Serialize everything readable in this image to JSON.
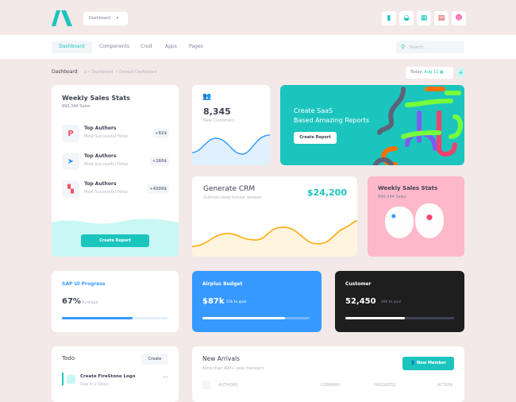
{
  "header": {
    "dropdown": "Dashboard",
    "icons": [
      "chart-icon",
      "basket-icon",
      "apps-icon",
      "us-flag-icon",
      "user-avatar"
    ]
  },
  "nav": {
    "items": [
      "Dashboard",
      "Components",
      "Crud",
      "Apps",
      "Pages"
    ],
    "active": 0,
    "search_placeholder": "Search..."
  },
  "breadcrumb": {
    "title": "Dashboard",
    "items": [
      "Dashboard",
      "Default Dashboard"
    ],
    "date_label": "Today:",
    "date_value": "Aug 11"
  },
  "weekly": {
    "title": "Weekly Sales Stats",
    "subtitle": "890,344 Sales",
    "rows": [
      {
        "title": "Top Authors",
        "sub": "Most Successful Fellas",
        "value": "+82$"
      },
      {
        "title": "Top Authors",
        "sub": "Most Successful Fellas",
        "value": "+280$"
      },
      {
        "title": "Top Authors",
        "sub": "Most Successful Fellas",
        "value": "+4500$"
      }
    ],
    "button": "Create Report"
  },
  "customers": {
    "value": "8,345",
    "label": "New Customers"
  },
  "banner": {
    "line1": "Create SaaS",
    "line2": "Based Amazing Reports",
    "button": "Create Report"
  },
  "crm": {
    "title": "Generate CRM",
    "subtitle": "Outlines keep honest reviews",
    "value": "$24,200"
  },
  "pink": {
    "title": "Weekly Sales Stats",
    "subtitle": "890,344 Sales"
  },
  "sap": {
    "title": "SAP UI Progress",
    "value": "67%",
    "label": "Avarage",
    "progress": 67
  },
  "airplus": {
    "title": "Airplus Budget",
    "value": "$87k",
    "label": "23k to goal",
    "progress": 77
  },
  "customer": {
    "title": "Customer",
    "value": "52,450",
    "label": "48k to goal",
    "progress": 55
  },
  "todo": {
    "title": "Todo",
    "button": "Create",
    "items": [
      {
        "title": "Create FireStone Logo",
        "due": "Due in 2 Days"
      }
    ]
  },
  "arrivals": {
    "title": "New Arrivals",
    "subtitle": "More than 400+ new members",
    "button": "New Member",
    "columns": [
      "AUTHORS",
      "COMPANY",
      "PROGRESS",
      "ACTION"
    ]
  },
  "colors": {
    "accent": "#1bc5bd",
    "primary": "#3699ff",
    "dark": "#1e1e2d",
    "bg": "#f3e9e8"
  }
}
